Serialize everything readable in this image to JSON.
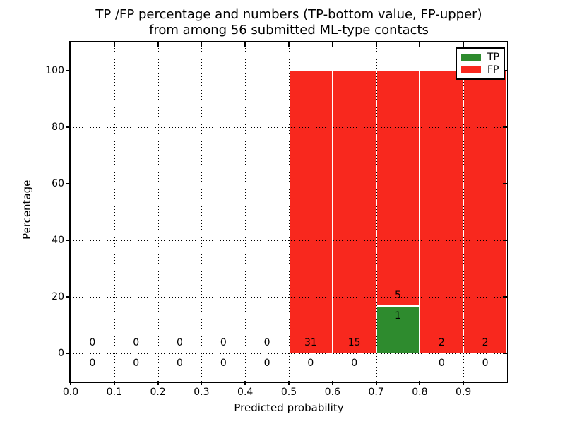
{
  "title": {
    "line1": "TP /FP percentage and numbers (TP-bottom value, FP-upper)",
    "line2": "from among 56 submitted ML-type contacts"
  },
  "axes": {
    "xlabel": "Predicted probability",
    "ylabel": "Percentage",
    "x_tick_labels": [
      "0.0",
      "0.1",
      "0.2",
      "0.3",
      "0.4",
      "0.5",
      "0.6",
      "0.7",
      "0.8",
      "0.9"
    ],
    "y_tick_labels": [
      "0",
      "20",
      "40",
      "60",
      "80",
      "100"
    ]
  },
  "legend": {
    "items": [
      {
        "label": "TP",
        "color": "#2e8b2e"
      },
      {
        "label": "FP",
        "color": "#f8281e"
      }
    ],
    "position": "upper right"
  },
  "chart_data": {
    "type": "bar",
    "stacked": true,
    "title": "TP /FP percentage and numbers (TP-bottom value, FP-upper) from among 56 submitted ML-type contacts",
    "xlabel": "Predicted probability",
    "ylabel": "Percentage",
    "xlim": [
      0.0,
      1.0
    ],
    "ylim": [
      -10,
      110
    ],
    "grid": "dotted",
    "legend_position": "upper right",
    "bin_width": 0.1,
    "total_contacts": 56,
    "colors": {
      "tp": "#2e8b2e",
      "fp": "#f8281e",
      "edge": "#ffffff"
    },
    "bins": [
      {
        "start": 0.0,
        "end": 0.1,
        "tp_count": 0,
        "fp_count": 0,
        "tp_pct": 0,
        "fp_pct": 0
      },
      {
        "start": 0.1,
        "end": 0.2,
        "tp_count": 0,
        "fp_count": 0,
        "tp_pct": 0,
        "fp_pct": 0
      },
      {
        "start": 0.2,
        "end": 0.3,
        "tp_count": 0,
        "fp_count": 0,
        "tp_pct": 0,
        "fp_pct": 0
      },
      {
        "start": 0.3,
        "end": 0.4,
        "tp_count": 0,
        "fp_count": 0,
        "tp_pct": 0,
        "fp_pct": 0
      },
      {
        "start": 0.4,
        "end": 0.5,
        "tp_count": 0,
        "fp_count": 0,
        "tp_pct": 0,
        "fp_pct": 0
      },
      {
        "start": 0.5,
        "end": 0.6,
        "tp_count": 0,
        "fp_count": 31,
        "tp_pct": 0,
        "fp_pct": 100
      },
      {
        "start": 0.6,
        "end": 0.7,
        "tp_count": 0,
        "fp_count": 15,
        "tp_pct": 0,
        "fp_pct": 100
      },
      {
        "start": 0.7,
        "end": 0.8,
        "tp_count": 1,
        "fp_count": 5,
        "tp_pct": 16.67,
        "fp_pct": 83.33
      },
      {
        "start": 0.8,
        "end": 0.9,
        "tp_count": 0,
        "fp_count": 2,
        "tp_pct": 0,
        "fp_pct": 100
      },
      {
        "start": 0.9,
        "end": 1.0,
        "tp_count": 0,
        "fp_count": 2,
        "tp_pct": 0,
        "fp_pct": 100
      }
    ],
    "upper_numbers_fp": [
      0,
      0,
      0,
      0,
      0,
      31,
      15,
      5,
      2,
      2
    ],
    "lower_numbers_tp": [
      0,
      0,
      0,
      0,
      0,
      0,
      0,
      1,
      0,
      0
    ]
  }
}
